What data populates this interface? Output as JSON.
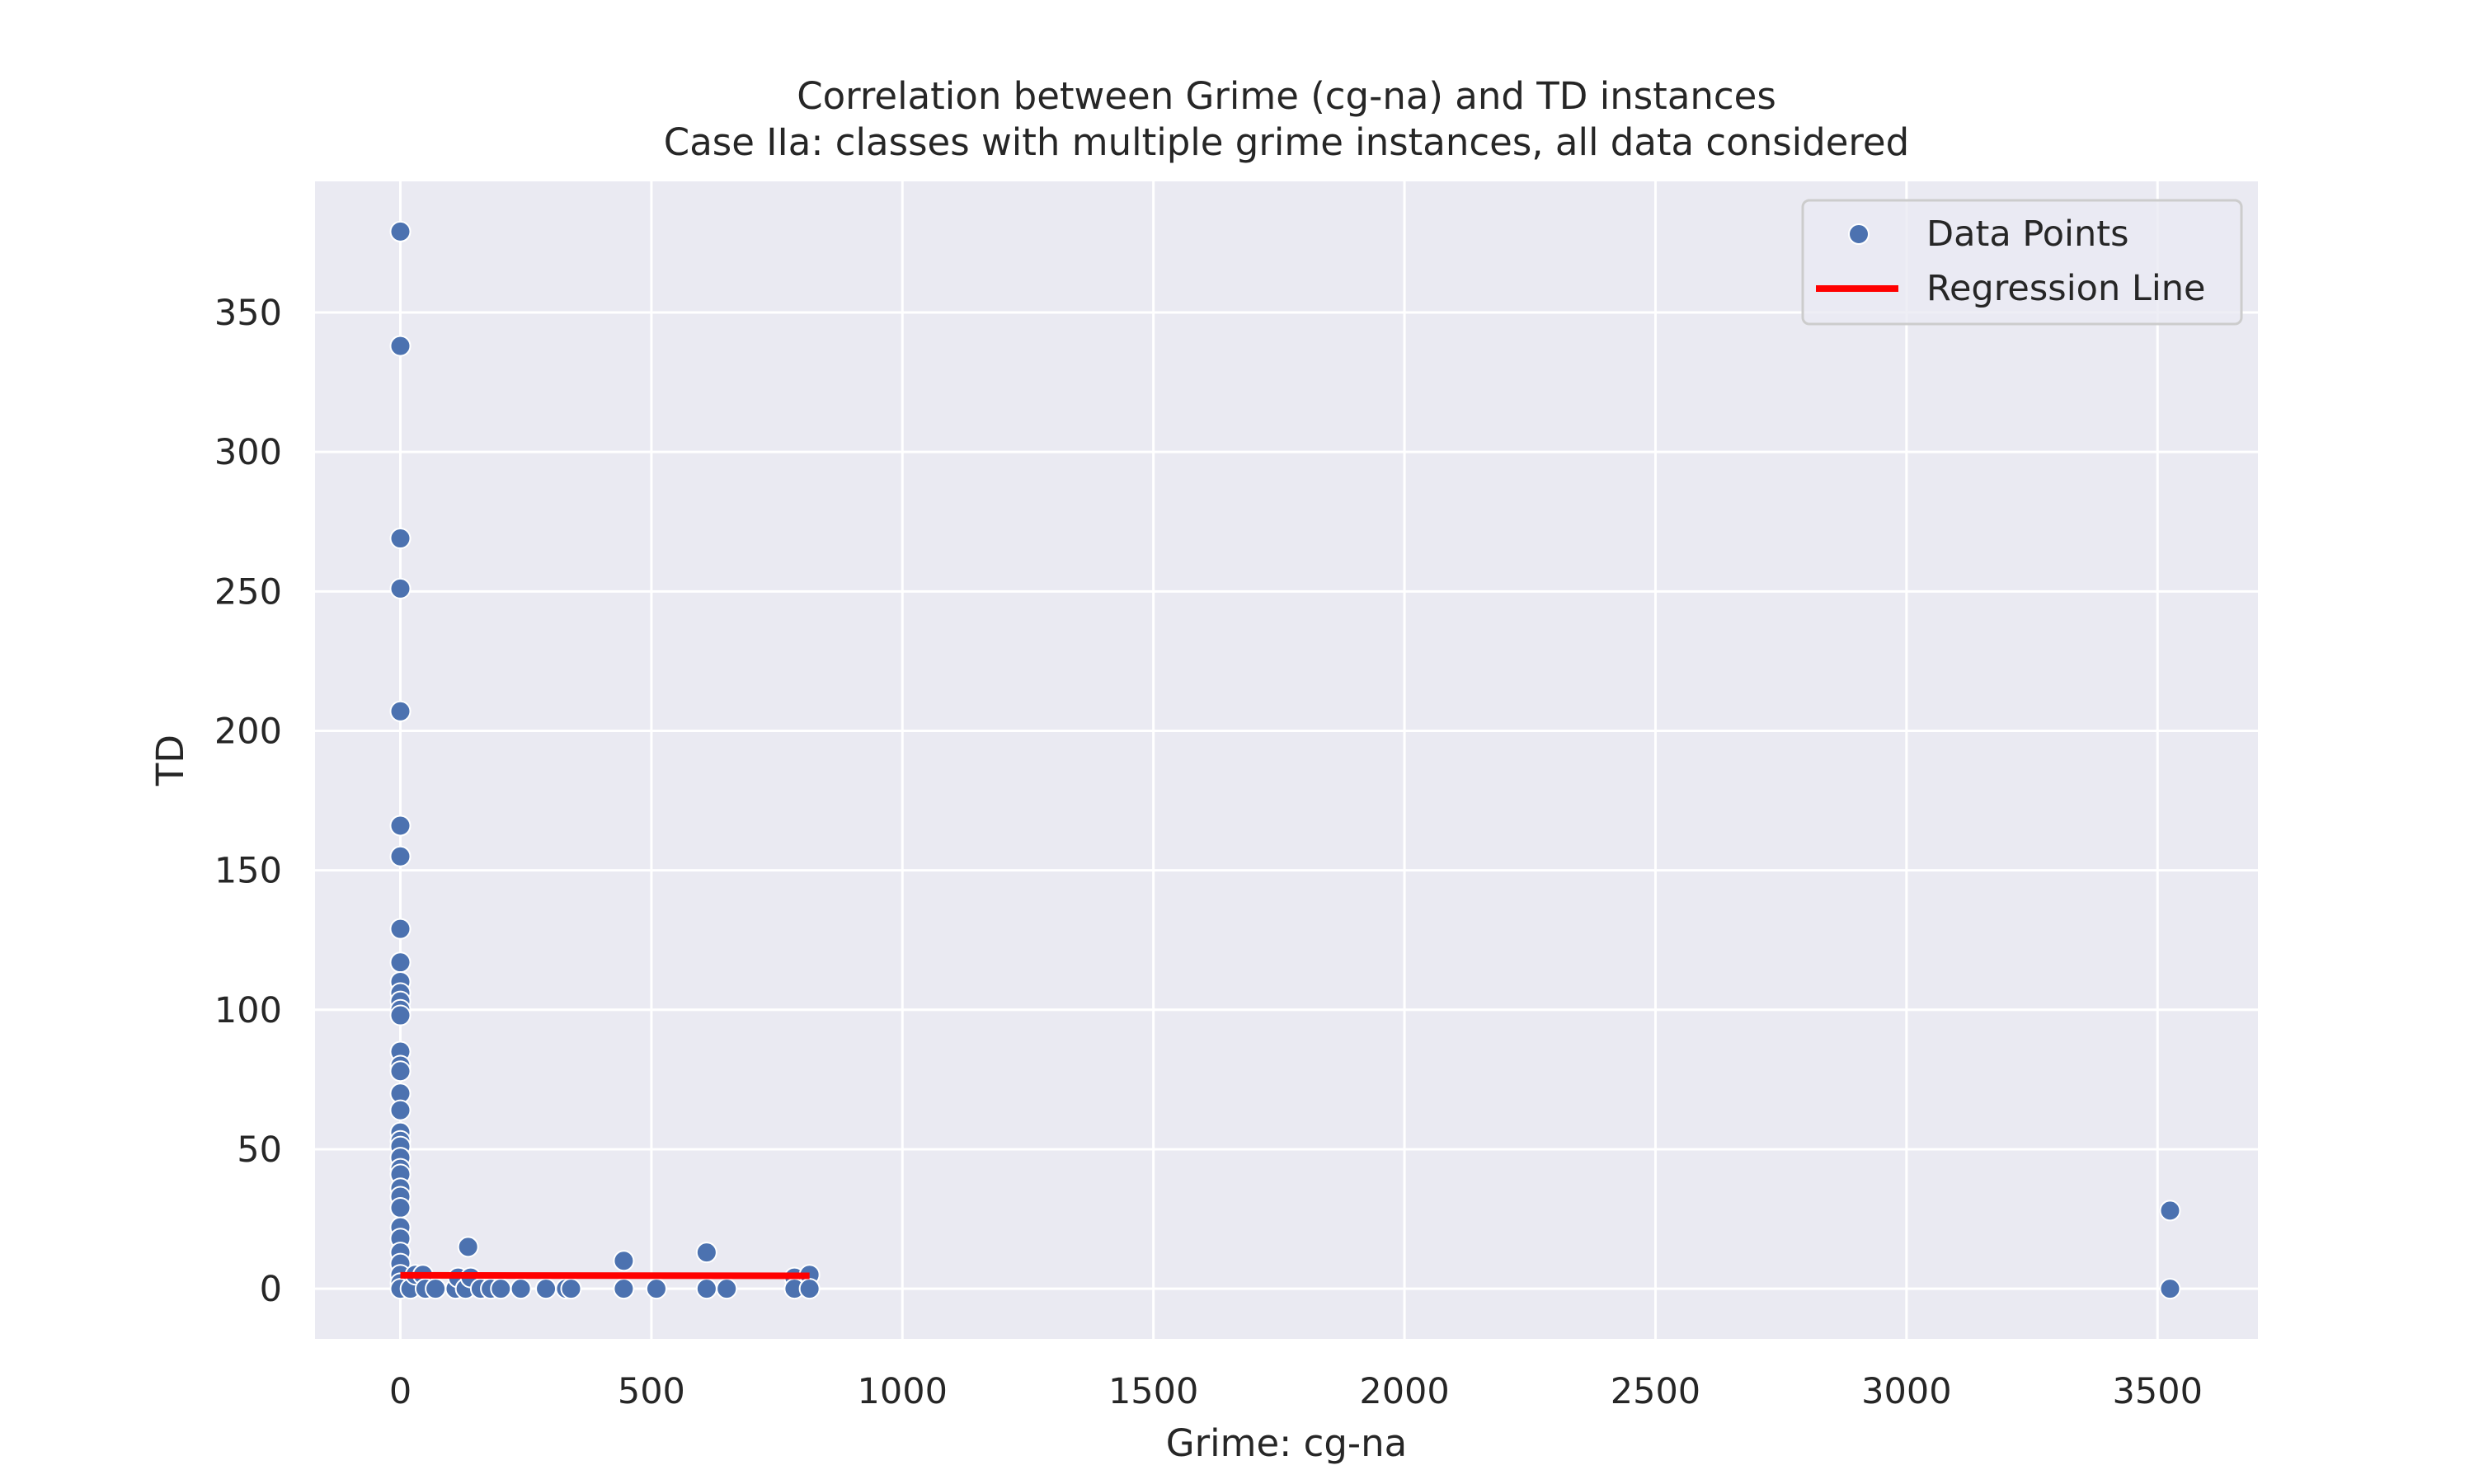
{
  "chart_data": {
    "type": "scatter",
    "title": "Correlation between Grime (cg-na) and TD instances",
    "subtitle": "Case IIa: classes with multiple grime instances, all data considered",
    "xlabel": "Grime: cg-na",
    "ylabel": "TD",
    "xlim": [
      -170,
      3700
    ],
    "ylim": [
      -18,
      397
    ],
    "x_ticks": [
      0,
      500,
      1000,
      1500,
      2000,
      2500,
      3000,
      3500
    ],
    "y_ticks": [
      0,
      50,
      100,
      150,
      200,
      250,
      300,
      350
    ],
    "grid": true,
    "legend_position": "top-right",
    "colors": {
      "background": "#eaeaf2",
      "grid": "#ffffff",
      "points": "#4c72b0",
      "regression": "#ff0000"
    },
    "series": [
      {
        "name": "Data Points",
        "kind": "scatter",
        "points": [
          [
            0,
            379
          ],
          [
            0,
            338
          ],
          [
            0,
            269
          ],
          [
            0,
            251
          ],
          [
            0,
            207
          ],
          [
            0,
            166
          ],
          [
            0,
            155
          ],
          [
            0,
            129
          ],
          [
            0,
            117
          ],
          [
            0,
            110
          ],
          [
            0,
            106
          ],
          [
            0,
            103
          ],
          [
            0,
            100
          ],
          [
            0,
            98
          ],
          [
            0,
            85
          ],
          [
            0,
            80
          ],
          [
            0,
            78
          ],
          [
            0,
            70
          ],
          [
            0,
            64
          ],
          [
            0,
            56
          ],
          [
            0,
            53
          ],
          [
            0,
            51
          ],
          [
            0,
            47
          ],
          [
            0,
            43
          ],
          [
            0,
            41
          ],
          [
            0,
            36
          ],
          [
            0,
            33
          ],
          [
            0,
            29
          ],
          [
            0,
            22
          ],
          [
            0,
            18
          ],
          [
            0,
            13
          ],
          [
            0,
            9
          ],
          [
            0,
            5
          ],
          [
            0,
            2
          ],
          [
            0,
            0
          ],
          [
            20,
            0
          ],
          [
            30,
            5
          ],
          [
            45,
            5
          ],
          [
            50,
            0
          ],
          [
            70,
            0
          ],
          [
            110,
            0
          ],
          [
            115,
            4
          ],
          [
            130,
            0
          ],
          [
            135,
            15
          ],
          [
            140,
            4
          ],
          [
            160,
            0
          ],
          [
            180,
            0
          ],
          [
            200,
            0
          ],
          [
            240,
            0
          ],
          [
            290,
            0
          ],
          [
            330,
            0
          ],
          [
            340,
            0
          ],
          [
            445,
            10
          ],
          [
            445,
            0
          ],
          [
            510,
            0
          ],
          [
            610,
            13
          ],
          [
            610,
            0
          ],
          [
            650,
            0
          ],
          [
            785,
            4
          ],
          [
            785,
            0
          ],
          [
            815,
            5
          ],
          [
            815,
            0
          ],
          [
            3525,
            28
          ],
          [
            3525,
            0
          ]
        ]
      },
      {
        "name": "Regression Line",
        "kind": "line",
        "points": [
          [
            0,
            4.8
          ],
          [
            815,
            4.6
          ]
        ]
      }
    ]
  }
}
